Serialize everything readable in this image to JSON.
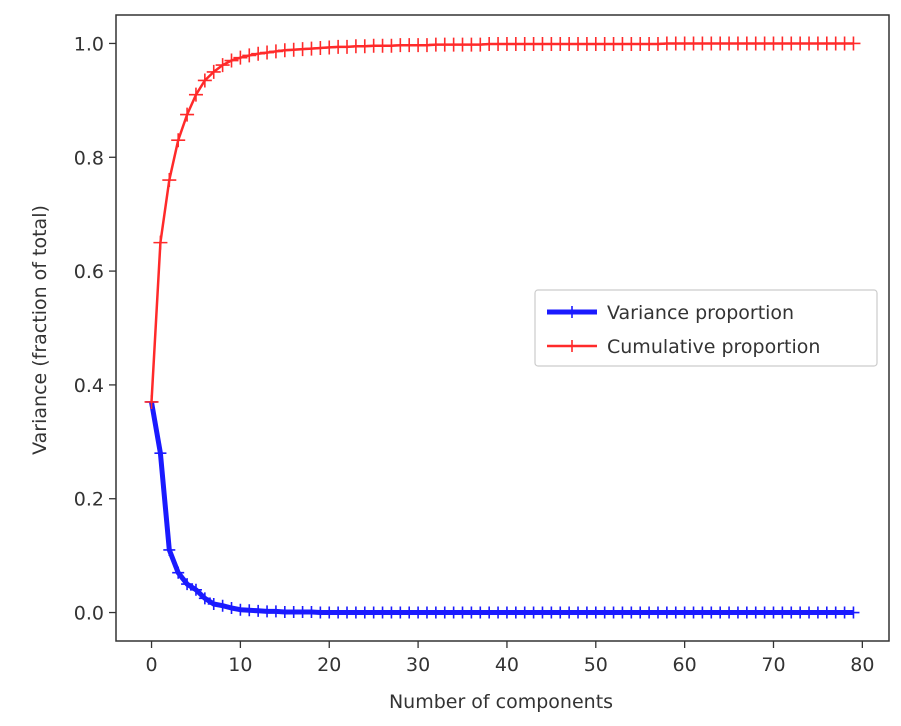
{
  "chart_data": {
    "type": "line",
    "title": "",
    "xlabel": "Number of components",
    "ylabel": "Variance (fraction of total)",
    "xlim": [
      -4,
      83
    ],
    "ylim": [
      -0.05,
      1.05
    ],
    "xticks": [
      0,
      10,
      20,
      30,
      40,
      50,
      60,
      70,
      80
    ],
    "xtick_labels": [
      "0",
      "10",
      "20",
      "30",
      "40",
      "50",
      "60",
      "70",
      "80"
    ],
    "yticks": [
      0.0,
      0.2,
      0.4,
      0.6,
      0.8,
      1.0
    ],
    "ytick_labels": [
      "0.0",
      "0.2",
      "0.4",
      "0.6",
      "0.8",
      "1.0"
    ],
    "grid": false,
    "legend_position": "center-right",
    "x": [
      0,
      1,
      2,
      3,
      4,
      5,
      6,
      7,
      8,
      9,
      10,
      11,
      12,
      13,
      14,
      15,
      16,
      17,
      18,
      19,
      20,
      21,
      22,
      23,
      24,
      25,
      26,
      27,
      28,
      29,
      30,
      31,
      32,
      33,
      34,
      35,
      36,
      37,
      38,
      39,
      40,
      41,
      42,
      43,
      44,
      45,
      46,
      47,
      48,
      49,
      50,
      51,
      52,
      53,
      54,
      55,
      56,
      57,
      58,
      59,
      60,
      61,
      62,
      63,
      64,
      65,
      66,
      67,
      68,
      69,
      70,
      71,
      72,
      73,
      74,
      75,
      76,
      77,
      78,
      79
    ],
    "series": [
      {
        "name": "Variance proportion",
        "color": "#1a1aff",
        "values": [
          0.37,
          0.28,
          0.11,
          0.07,
          0.05,
          0.04,
          0.025,
          0.015,
          0.012,
          0.008,
          0.005,
          0.004,
          0.003,
          0.002,
          0.002,
          0.001,
          0.001,
          0.001,
          0.001,
          0.0,
          0.0,
          0.0,
          0.0,
          0.0,
          0.0,
          0.0,
          0.0,
          0.0,
          0.0,
          0.0,
          0.0,
          0.0,
          0.0,
          0.0,
          0.0,
          0.0,
          0.0,
          0.0,
          0.0,
          0.0,
          0.0,
          0.0,
          0.0,
          0.0,
          0.0,
          0.0,
          0.0,
          0.0,
          0.0,
          0.0,
          0.0,
          0.0,
          0.0,
          0.0,
          0.0,
          0.0,
          0.0,
          0.0,
          0.0,
          0.0,
          0.0,
          0.0,
          0.0,
          0.0,
          0.0,
          0.0,
          0.0,
          0.0,
          0.0,
          0.0,
          0.0,
          0.0,
          0.0,
          0.0,
          0.0,
          0.0,
          0.0,
          0.0,
          0.0,
          0.0
        ]
      },
      {
        "name": "Cumulative proportion",
        "color": "#ff2a2a",
        "values": [
          0.37,
          0.65,
          0.76,
          0.83,
          0.875,
          0.91,
          0.935,
          0.95,
          0.962,
          0.97,
          0.975,
          0.979,
          0.982,
          0.984,
          0.986,
          0.988,
          0.989,
          0.99,
          0.991,
          0.992,
          0.993,
          0.994,
          0.994,
          0.995,
          0.995,
          0.996,
          0.996,
          0.996,
          0.997,
          0.997,
          0.997,
          0.997,
          0.998,
          0.998,
          0.998,
          0.998,
          0.998,
          0.998,
          0.999,
          0.999,
          0.999,
          0.999,
          0.999,
          0.999,
          0.999,
          0.999,
          0.999,
          0.999,
          0.999,
          0.999,
          0.999,
          0.999,
          0.999,
          0.999,
          0.999,
          0.999,
          0.999,
          0.999,
          1.0,
          1.0,
          1.0,
          1.0,
          1.0,
          1.0,
          1.0,
          1.0,
          1.0,
          1.0,
          1.0,
          1.0,
          1.0,
          1.0,
          1.0,
          1.0,
          1.0,
          1.0,
          1.0,
          1.0,
          1.0,
          1.0
        ]
      }
    ]
  }
}
